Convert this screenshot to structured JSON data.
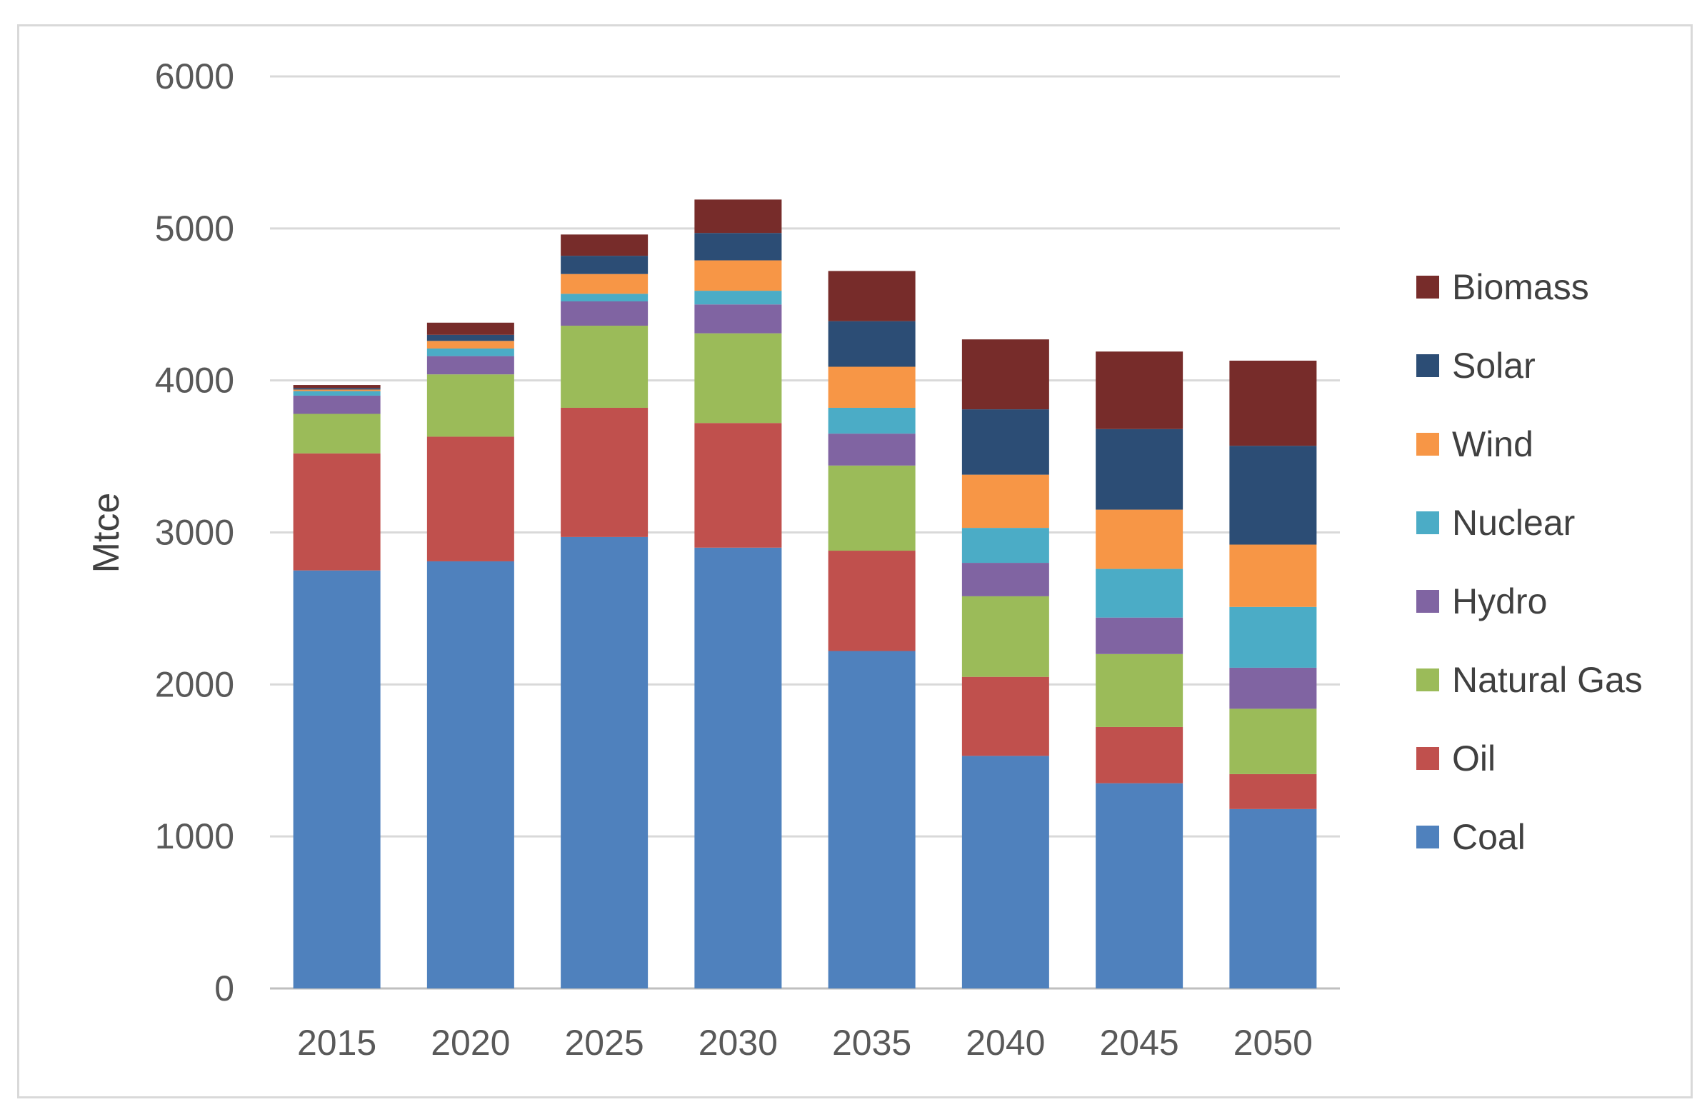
{
  "chart_data": {
    "type": "bar",
    "stacked": true,
    "title": "",
    "xlabel": "",
    "ylabel": "Mtce",
    "ylim": [
      0,
      6000
    ],
    "yticks": [
      0,
      1000,
      2000,
      3000,
      4000,
      5000,
      6000
    ],
    "grid": true,
    "legend_position": "right",
    "categories": [
      "2015",
      "2020",
      "2025",
      "2030",
      "2035",
      "2040",
      "2045",
      "2050"
    ],
    "series": [
      {
        "name": "Coal",
        "color": "#4F81BD",
        "values": [
          2750,
          2810,
          2970,
          2900,
          2220,
          1530,
          1350,
          1180
        ]
      },
      {
        "name": "Oil",
        "color": "#C0504D",
        "values": [
          770,
          820,
          850,
          820,
          660,
          520,
          370,
          230
        ]
      },
      {
        "name": "Natural Gas",
        "color": "#9BBB59",
        "values": [
          260,
          410,
          540,
          590,
          560,
          530,
          480,
          430
        ]
      },
      {
        "name": "Hydro",
        "color": "#8064A2",
        "values": [
          120,
          120,
          160,
          190,
          210,
          220,
          240,
          270
        ]
      },
      {
        "name": "Nuclear",
        "color": "#4BACC6",
        "values": [
          30,
          50,
          50,
          90,
          170,
          230,
          320,
          400
        ]
      },
      {
        "name": "Wind",
        "color": "#F79646",
        "values": [
          10,
          50,
          130,
          200,
          270,
          350,
          390,
          410
        ]
      },
      {
        "name": "Solar",
        "color": "#2C4D75",
        "values": [
          10,
          40,
          120,
          180,
          300,
          430,
          530,
          650
        ]
      },
      {
        "name": "Biomass",
        "color": "#772C2A",
        "values": [
          20,
          80,
          140,
          220,
          330,
          460,
          510,
          560
        ]
      }
    ],
    "legend_order": [
      "Biomass",
      "Solar",
      "Wind",
      "Nuclear",
      "Hydro",
      "Natural Gas",
      "Oil",
      "Coal"
    ]
  }
}
